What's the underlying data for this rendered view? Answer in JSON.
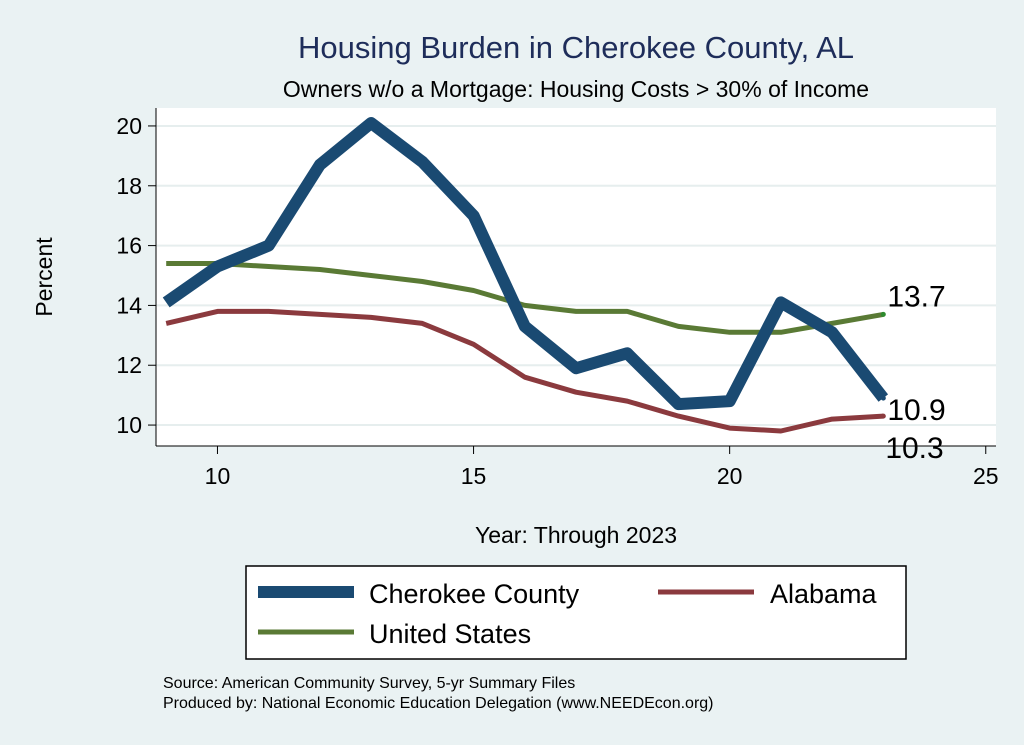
{
  "chart_data": {
    "type": "line",
    "title": "Housing Burden in Cherokee County, AL",
    "subtitle": "Owners w/o a Mortgage: Housing Costs > 30% of Income",
    "xlabel": "Year: Through 2023",
    "ylabel": "Percent",
    "xlim": [
      8.8,
      25.2
    ],
    "ylim": [
      9.3,
      20.6
    ],
    "xticks": [
      10,
      15,
      20,
      25
    ],
    "yticks": [
      10,
      12,
      14,
      16,
      18,
      20
    ],
    "x": [
      9,
      10,
      11,
      12,
      13,
      14,
      15,
      16,
      17,
      18,
      19,
      20,
      21,
      22,
      23
    ],
    "series": [
      {
        "name": "Cherokee County",
        "color": "#1a4a72",
        "values": [
          14.1,
          15.3,
          16.0,
          18.7,
          20.1,
          18.8,
          17.0,
          13.3,
          11.9,
          12.4,
          10.7,
          10.8,
          14.1,
          13.1,
          10.9
        ],
        "end_label": "10.9"
      },
      {
        "name": "Alabama",
        "color": "#8b3a3e",
        "values": [
          13.4,
          13.8,
          13.8,
          13.7,
          13.6,
          13.4,
          12.7,
          11.6,
          11.1,
          10.8,
          10.3,
          9.9,
          9.8,
          10.2,
          10.3
        ],
        "end_label": "10.3"
      },
      {
        "name": "United States",
        "color": "#5a7a35",
        "values": [
          15.4,
          15.4,
          15.3,
          15.2,
          15.0,
          14.8,
          14.5,
          14.0,
          13.8,
          13.8,
          13.3,
          13.1,
          13.1,
          13.4,
          13.7
        ],
        "end_label": "13.7"
      }
    ],
    "legend": {
      "position": "bottom"
    },
    "notes": [
      "Source: American Community Survey, 5-yr Summary Files",
      "Produced by: National Economic Education Delegation (www.NEEDEcon.org)"
    ]
  }
}
